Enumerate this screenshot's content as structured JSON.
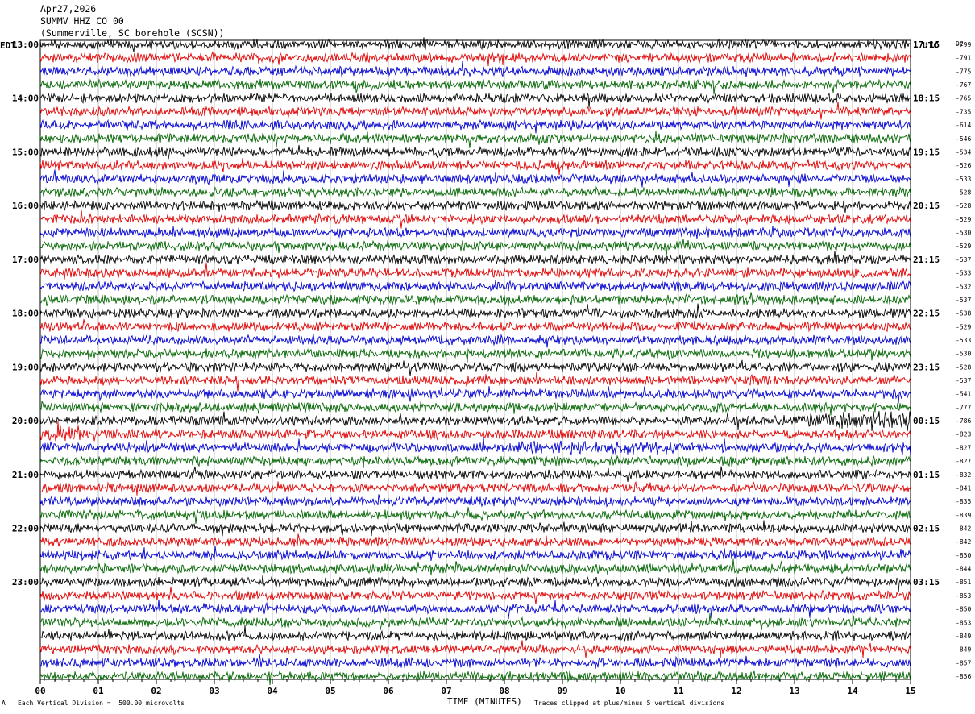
{
  "header": {
    "date": "Apr27,2026",
    "station": "SUMMV HHZ CO 00",
    "location": "(Summerville, SC borehole (SCSN))"
  },
  "left_tz": "EDT",
  "right_tz": "UTC",
  "dc_label": "DC",
  "footer": {
    "scale_note": "Each Vertical Division =  500.00 microvolts",
    "clip_note": "Traces clipped at plus/minus 5 vertical divisions",
    "corner_mark": "A"
  },
  "colors": {
    "trace_cycle": [
      "#000000",
      "#e00000",
      "#0000d0",
      "#006400"
    ],
    "grid": "#aaaaaa"
  },
  "chart_data": {
    "type": "line",
    "xlabel": "TIME (MINUTES)",
    "xlim": [
      0,
      15
    ],
    "x_ticks": [
      "00",
      "01",
      "02",
      "03",
      "04",
      "05",
      "06",
      "07",
      "08",
      "09",
      "10",
      "11",
      "12",
      "13",
      "14",
      "15"
    ],
    "rows": 48,
    "left_hour_labels": [
      "13:00",
      "14:00",
      "15:00",
      "16:00",
      "17:00",
      "18:00",
      "19:00",
      "20:00",
      "21:00",
      "22:00",
      "23:00"
    ],
    "right_hour_labels": [
      "17:15",
      "18:15",
      "19:15",
      "20:15",
      "21:15",
      "22:15",
      "23:15",
      "00:15",
      "01:15",
      "02:15",
      "03:15"
    ],
    "row_offsets": [
      "-799",
      "-791",
      "-775",
      "-767",
      "-765",
      "-735",
      "-614",
      "-546",
      "-534",
      "-526",
      "-533",
      "-528",
      "-528",
      "-529",
      "-530",
      "-529",
      "-537",
      "-533",
      "-532",
      "-537",
      "-538",
      "-529",
      "-533",
      "-530",
      "-528",
      "-537",
      "-541",
      "-777",
      "-786",
      "-823",
      "-827",
      "-827",
      "-832",
      "-841",
      "-835",
      "-839",
      "-842",
      "-842",
      "-850",
      "-844",
      "-851",
      "-853",
      "-850",
      "-853",
      "-849",
      "-849",
      "-857",
      "-856"
    ]
  }
}
